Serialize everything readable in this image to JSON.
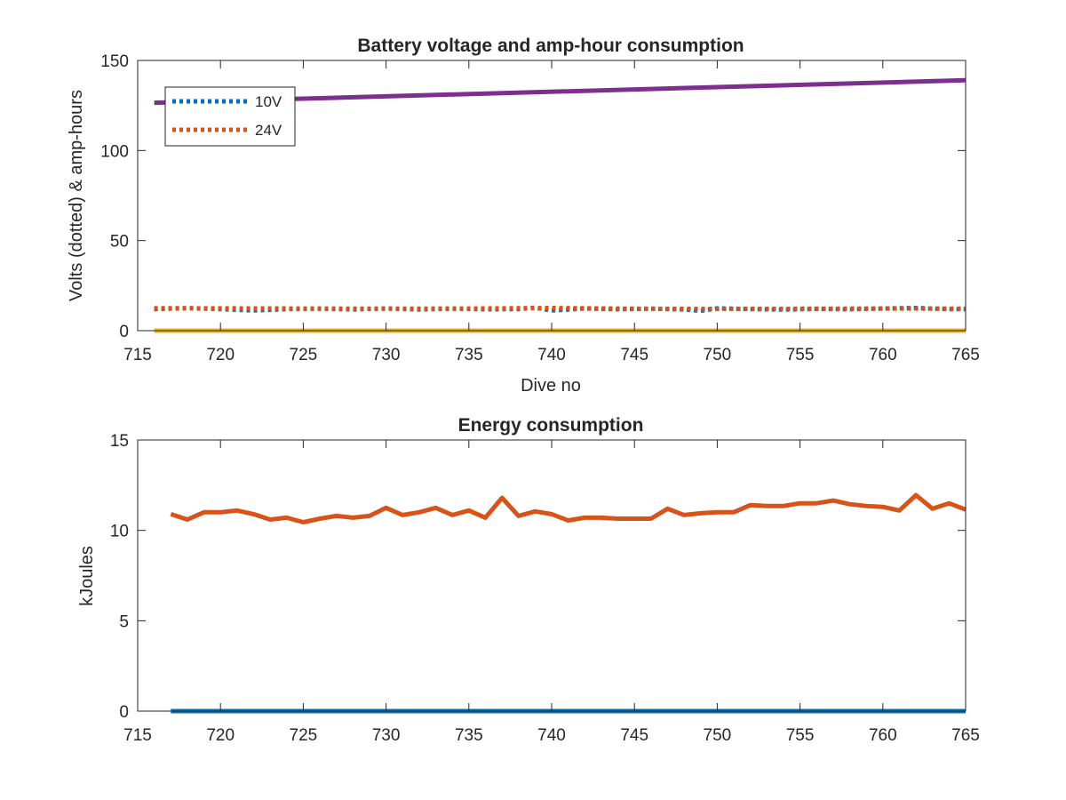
{
  "chart_data": [
    {
      "type": "line",
      "title": "Battery voltage and amp-hour consumption",
      "xlabel": "Dive no",
      "ylabel": "Volts (dotted) & amp-hours",
      "xlim": [
        715,
        765
      ],
      "ylim": [
        0,
        150
      ],
      "xticks": [
        "715",
        "720",
        "725",
        "730",
        "735",
        "740",
        "745",
        "750",
        "755",
        "760",
        "765"
      ],
      "yticks": [
        "0",
        "50",
        "100",
        "150"
      ],
      "legend_position": "top-left",
      "series": [
        {
          "name": "10V",
          "style": "dotted",
          "color": "#0072BD",
          "x": [
            716,
            718,
            720,
            722,
            724,
            726,
            728,
            730,
            732,
            734,
            736,
            738,
            739,
            740,
            742,
            744,
            746,
            748,
            749,
            750,
            752,
            754,
            756,
            758,
            760,
            762,
            764,
            765
          ],
          "y": [
            12,
            12.5,
            12,
            11.2,
            12,
            12.2,
            11.8,
            12.3,
            11.8,
            12.2,
            11.9,
            12,
            12.8,
            11.2,
            12.3,
            11.9,
            12.2,
            11.8,
            11,
            12.4,
            12,
            11.7,
            12.1,
            11.9,
            12.3,
            12.6,
            12,
            12
          ]
        },
        {
          "name": "24V",
          "style": "dotted",
          "color": "#D95319",
          "x": [
            716,
            720,
            725,
            730,
            735,
            740,
            745,
            750,
            755,
            760,
            765
          ],
          "y": [
            12.5,
            12.4,
            12.3,
            12.2,
            12.3,
            12.6,
            12.2,
            12.1,
            12.2,
            12.3,
            12.2
          ]
        },
        {
          "name": "",
          "style": "solid",
          "color": "#7E2F8E",
          "x": [
            716,
            765
          ],
          "y": [
            126.5,
            139
          ]
        },
        {
          "name": "",
          "style": "solid",
          "color": "#EDB120",
          "x": [
            716,
            765
          ],
          "y": [
            0,
            0
          ]
        }
      ]
    },
    {
      "type": "line",
      "title": "Energy consumption",
      "xlabel": "",
      "ylabel": "kJoules",
      "xlim": [
        715,
        765
      ],
      "ylim": [
        0,
        15
      ],
      "xticks": [
        "715",
        "720",
        "725",
        "730",
        "735",
        "740",
        "745",
        "750",
        "755",
        "760",
        "765"
      ],
      "yticks": [
        "0",
        "5",
        "10",
        "15"
      ],
      "series": [
        {
          "name": "",
          "style": "solid",
          "color": "#D95319",
          "x": [
            717,
            718,
            719,
            720,
            721,
            722,
            723,
            724,
            725,
            726,
            727,
            728,
            729,
            730,
            731,
            732,
            733,
            734,
            735,
            736,
            737,
            738,
            739,
            740,
            741,
            742,
            743,
            744,
            745,
            746,
            747,
            748,
            749,
            750,
            751,
            752,
            753,
            754,
            755,
            756,
            757,
            758,
            759,
            760,
            761,
            762,
            763,
            764,
            765
          ],
          "y": [
            10.9,
            10.6,
            11.0,
            11.0,
            11.1,
            10.9,
            10.6,
            10.7,
            10.45,
            10.65,
            10.8,
            10.7,
            10.8,
            11.25,
            10.85,
            11.0,
            11.25,
            10.85,
            11.1,
            10.7,
            11.8,
            10.8,
            11.05,
            10.9,
            10.55,
            10.7,
            10.7,
            10.65,
            10.65,
            10.65,
            11.2,
            10.85,
            10.95,
            11.0,
            11.0,
            11.4,
            11.35,
            11.35,
            11.5,
            11.5,
            11.65,
            11.45,
            11.35,
            11.3,
            11.1,
            11.95,
            11.2,
            11.5,
            11.15
          ]
        },
        {
          "name": "",
          "style": "solid",
          "color": "#0072BD",
          "x": [
            717,
            765
          ],
          "y": [
            0,
            0
          ]
        }
      ]
    }
  ]
}
